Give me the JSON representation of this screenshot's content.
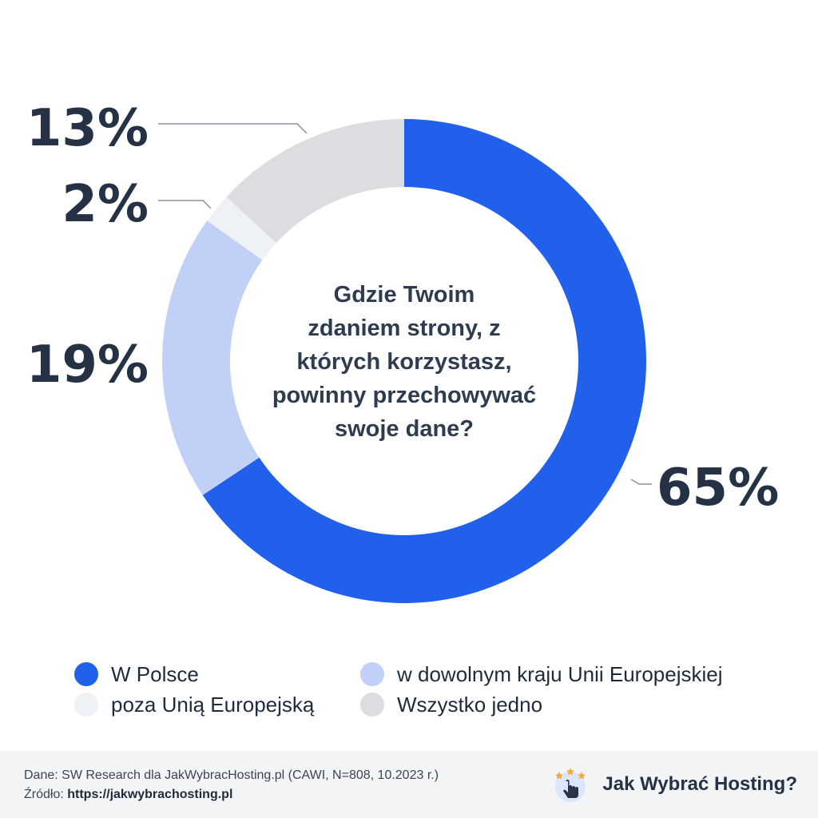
{
  "chart_data": {
    "type": "pie",
    "title": "Gdzie Twoim zdaniem strony, z których korzystasz, powinny przechowywać swoje dane?",
    "title_lines": [
      "Gdzie Twoim",
      "zdaniem strony, z",
      "których korzystasz,",
      "powinny przechowywać",
      "swoje dane?"
    ],
    "categories": [
      "W Polsce",
      "w dowolnym kraju Unii Europejskiej",
      "poza Unią Europejską",
      "Wszystko jedno"
    ],
    "values": [
      65,
      19,
      2,
      13
    ],
    "labels": [
      "65%",
      "19%",
      "2%",
      "13%"
    ],
    "colors": [
      "#2060ea",
      "#c0d0f6",
      "#eef2f6",
      "#dcdde0"
    ],
    "legend_position": "bottom"
  },
  "legend": [
    {
      "label": "W Polsce",
      "color": "#2060ea"
    },
    {
      "label": "w dowolnym kraju Unii Europejskiej",
      "color": "#c0d0f6"
    },
    {
      "label": "poza Unią Europejską",
      "color": "#eef2f6"
    },
    {
      "label": "Wszystko jedno",
      "color": "#dcdde0"
    }
  ],
  "footer": {
    "data_line": "Dane: SW Research dla JakWybracHosting.pl (CAWI, N=808, 10.2023 r.)",
    "source_prefix": "Źródło:",
    "source_url": "https://jakwybrachosting.pl",
    "brand_name": "Jak Wybrać Hosting?",
    "brand_icon": "pointer-hand-stars-icon"
  }
}
